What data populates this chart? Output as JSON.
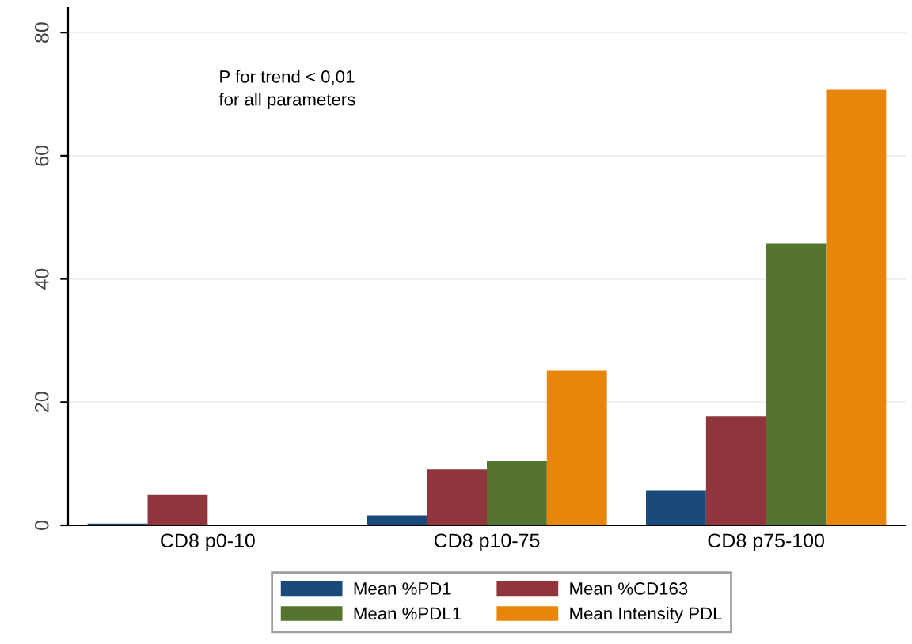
{
  "chart_data": {
    "type": "bar",
    "categories": [
      "CD8 p0-10",
      "CD8 p10-75",
      "CD8 p75-100"
    ],
    "series": [
      {
        "name": "Mean %PD1",
        "color": "#1a4a7a",
        "values": [
          0.3,
          1.6,
          5.7
        ]
      },
      {
        "name": "Mean %CD163",
        "color": "#90353b",
        "values": [
          4.9,
          9.1,
          17.7
        ]
      },
      {
        "name": "Mean %PDL1",
        "color": "#55752f",
        "values": [
          0,
          10.4,
          45.8
        ]
      },
      {
        "name": "Mean Intensity PDL",
        "color": "#e8860c",
        "values": [
          0,
          25.1,
          70.7
        ]
      }
    ],
    "ylim": [
      0,
      84
    ],
    "yticks": [
      0,
      20,
      40,
      60,
      80
    ],
    "grid": "y",
    "legend": "bottom",
    "annotations": [
      "P for trend < 0,01\nfor all parameters"
    ]
  }
}
